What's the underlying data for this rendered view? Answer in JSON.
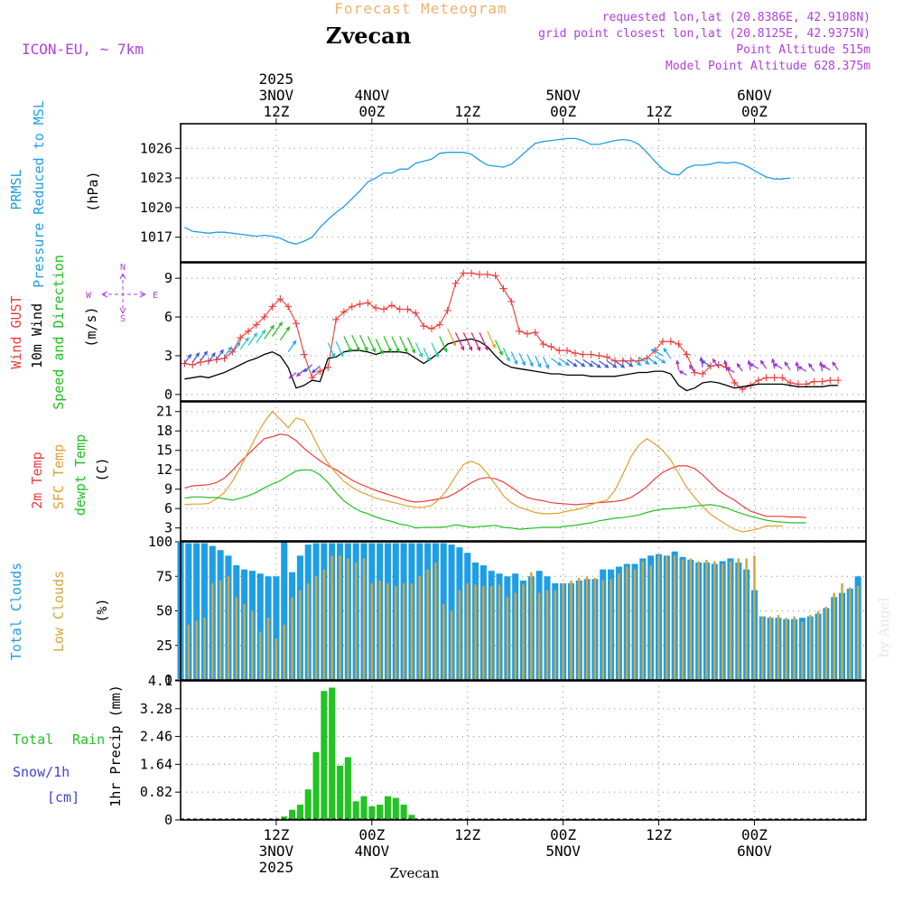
{
  "header": {
    "title": "Forecast Meteogram",
    "location": "Zvecan",
    "model": "ICON-EU, ~ 7km",
    "requested": "requested lon,lat (20.8386E, 42.9108N)",
    "grid_point": "grid point closest lon,lat (20.8125E, 42.9375N)",
    "point_altitude": "Point Altitude 515m",
    "model_altitude": "Model Point Altitude 628.375m",
    "footer_location": "Zvecan",
    "watermark": "by Angel"
  },
  "colors": {
    "pressure": "#1e9ee6",
    "gust": "#f03a3a",
    "wind": "#000000",
    "wind_dir": "#1fbf1f",
    "temp_2m": "#f03a3a",
    "temp_sfc": "#e0a030",
    "dewpoint": "#20c020",
    "total_cloud": "#1e9ee6",
    "low_cloud": "#d2a640",
    "rain": "#22c322",
    "snow": "#4040e0",
    "compass": "#b040e0",
    "title_color": "#f0b070",
    "info_color": "#b040e0"
  },
  "time_axis": {
    "top_labels": [
      {
        "hour": 12,
        "lines": [
          "2025",
          "3NOV",
          "12Z"
        ]
      },
      {
        "hour": 24,
        "lines": [
          "4NOV",
          "00Z"
        ]
      },
      {
        "hour": 36,
        "lines": [
          "12Z"
        ]
      },
      {
        "hour": 48,
        "lines": [
          "5NOV",
          "00Z"
        ]
      },
      {
        "hour": 60,
        "lines": [
          "12Z"
        ]
      },
      {
        "hour": 72,
        "lines": [
          "6NOV",
          "00Z"
        ]
      }
    ],
    "bottom_labels": [
      {
        "hour": 12,
        "lines": [
          "12Z",
          "3NOV",
          "2025"
        ]
      },
      {
        "hour": 24,
        "lines": [
          "00Z",
          "4NOV"
        ]
      },
      {
        "hour": 36,
        "lines": [
          "12Z"
        ]
      },
      {
        "hour": 48,
        "lines": [
          "00Z",
          "5NOV"
        ]
      },
      {
        "hour": 60,
        "lines": [
          "12Z"
        ]
      },
      {
        "hour": 72,
        "lines": [
          "00Z",
          "6NOV"
        ]
      }
    ]
  },
  "labels": {
    "pressure": [
      "PRMSL",
      "Pressure Reduced to MSL"
    ],
    "pressure_unit": "(hPa)",
    "wind_gust": "Wind GUST",
    "wind_10m": "10m Wind",
    "wind_dir": "Speed and Direction",
    "wind_unit": "(m/s)",
    "compass_n": "N",
    "compass_s": "S",
    "compass_w": "W",
    "compass_e": "E",
    "temp_2m": "2m Temp",
    "temp_sfc": "SFC Temp",
    "temp_dew": "dewpt Temp",
    "temp_unit": "(C)",
    "total_clouds": "Total Clouds",
    "low_clouds": "Low Clouds",
    "cloud_unit": "(%)",
    "rain_total": "Total",
    "rain_rain": "Rain",
    "snow": "Snow/1h",
    "snow_unit": "[cm]",
    "precip_axis": "1hr Precip (mm)"
  },
  "chart_data": [
    {
      "type": "line",
      "name": "pressure",
      "x_start_hour": 0.5,
      "x_step_hours": 1,
      "ylim": [
        1014.5,
        1028.5
      ],
      "yticks": [
        1017,
        1020,
        1023,
        1026
      ],
      "series": [
        {
          "name": "PRMSL",
          "values": [
            1018.0,
            1017.6,
            1017.5,
            1017.4,
            1017.5,
            1017.5,
            1017.4,
            1017.3,
            1017.2,
            1017.1,
            1017.2,
            1017.1,
            1016.9,
            1016.5,
            1016.3,
            1016.6,
            1017.0,
            1018.0,
            1018.8,
            1019.5,
            1020.1,
            1020.9,
            1021.7,
            1022.6,
            1023.0,
            1023.5,
            1023.5,
            1023.9,
            1023.9,
            1024.5,
            1024.7,
            1024.9,
            1025.5,
            1025.6,
            1025.6,
            1025.6,
            1025.4,
            1024.8,
            1024.3,
            1024.2,
            1024.1,
            1024.4,
            1025.1,
            1025.8,
            1026.5,
            1026.7,
            1026.8,
            1026.9,
            1027.0,
            1027.0,
            1026.8,
            1026.4,
            1026.4,
            1026.6,
            1026.8,
            1026.9,
            1026.8,
            1026.4,
            1025.6,
            1024.7,
            1023.9,
            1023.4,
            1023.3,
            1024.0,
            1024.3,
            1024.3,
            1024.4,
            1024.6,
            1024.5,
            1024.6,
            1024.4,
            1024.0,
            1023.5,
            1023.1,
            1022.9,
            1022.9,
            1023.0
          ]
        }
      ]
    },
    {
      "type": "line",
      "name": "wind",
      "x_start_hour": 0.5,
      "x_step_hours": 1,
      "ylim": [
        -0.5,
        10.2
      ],
      "yticks": [
        0,
        3,
        6,
        9
      ],
      "series": [
        {
          "name": "Wind GUST",
          "values": [
            2.4,
            2.3,
            2.5,
            2.6,
            2.7,
            2.8,
            3.3,
            4.4,
            4.9,
            5.4,
            6.0,
            6.8,
            7.4,
            6.8,
            5.5,
            3.1,
            1.3,
            1.8,
            2.1,
            5.8,
            6.4,
            6.8,
            7.0,
            7.1,
            6.7,
            6.6,
            6.9,
            6.6,
            6.6,
            6.3,
            5.3,
            5.1,
            5.4,
            6.5,
            8.6,
            9.4,
            9.4,
            9.3,
            9.3,
            9.2,
            8.2,
            7.2,
            4.9,
            4.7,
            4.8,
            3.9,
            3.7,
            3.4,
            3.4,
            3.2,
            3.1,
            3.1,
            3.0,
            2.9,
            2.6,
            2.6,
            2.6,
            2.6,
            2.8,
            3.4,
            4.1,
            4.1,
            3.9,
            3.1,
            1.7,
            1.6,
            2.2,
            2.3,
            2.1,
            0.9,
            0.4,
            0.7,
            1.1,
            1.3,
            1.3,
            1.3,
            0.9,
            0.8,
            0.8,
            1.0,
            1.0,
            1.1,
            1.1
          ]
        },
        {
          "name": "10m Wind",
          "values": [
            1.2,
            1.3,
            1.4,
            1.3,
            1.5,
            1.7,
            2.0,
            2.3,
            2.6,
            2.8,
            3.1,
            3.3,
            3.0,
            2.1,
            0.5,
            0.7,
            1.1,
            1.0,
            2.8,
            2.9,
            3.3,
            3.4,
            3.4,
            3.3,
            3.1,
            3.3,
            3.3,
            3.3,
            3.2,
            2.8,
            2.4,
            2.8,
            3.3,
            3.9,
            4.1,
            4.2,
            4.3,
            4.1,
            3.7,
            3.0,
            2.4,
            2.1,
            2.0,
            1.9,
            1.8,
            1.7,
            1.6,
            1.6,
            1.5,
            1.5,
            1.5,
            1.4,
            1.4,
            1.4,
            1.4,
            1.5,
            1.6,
            1.7,
            1.7,
            1.8,
            1.8,
            1.6,
            0.7,
            0.3,
            0.5,
            0.9,
            1.0,
            0.9,
            0.7,
            0.5,
            0.6,
            0.7,
            0.8,
            0.8,
            0.8,
            0.8,
            0.7,
            0.6,
            0.6,
            0.6,
            0.6,
            0.7,
            0.7
          ]
        }
      ]
    },
    {
      "type": "line",
      "name": "temperature",
      "x_start_hour": 0.5,
      "x_step_hours": 1,
      "ylim": [
        1.0,
        22.5
      ],
      "yticks": [
        3,
        6,
        9,
        12,
        15,
        18,
        21
      ],
      "series": [
        {
          "name": "2m Temp",
          "values": [
            9.2,
            9.5,
            9.6,
            9.7,
            10.0,
            10.7,
            11.9,
            13.2,
            14.4,
            15.6,
            16.8,
            17.1,
            17.5,
            17.3,
            16.5,
            15.3,
            14.3,
            13.4,
            12.6,
            12.0,
            11.2,
            10.4,
            9.8,
            9.3,
            8.8,
            8.4,
            8.0,
            7.6,
            7.2,
            7.0,
            7.1,
            7.3,
            7.5,
            7.8,
            8.4,
            9.2,
            10.0,
            10.6,
            10.8,
            10.6,
            10.1,
            9.3,
            8.4,
            7.7,
            7.4,
            7.2,
            6.9,
            6.8,
            6.7,
            6.6,
            6.7,
            6.8,
            6.9,
            7.0,
            7.1,
            7.3,
            7.7,
            8.5,
            9.4,
            10.6,
            11.6,
            12.2,
            12.6,
            12.6,
            12.2,
            11.2,
            10.0,
            8.8,
            8.0,
            7.3,
            6.4,
            5.6,
            5.2,
            4.8,
            4.8,
            4.8,
            4.7,
            4.7,
            4.6
          ]
        },
        {
          "name": "SFC Temp",
          "values": [
            6.6,
            6.7,
            6.7,
            6.8,
            7.5,
            8.5,
            10.2,
            12.4,
            14.8,
            17.2,
            19.4,
            21.0,
            19.8,
            18.5,
            20.0,
            19.6,
            17.5,
            15.0,
            13.0,
            11.5,
            10.2,
            9.3,
            8.6,
            8.1,
            7.6,
            7.3,
            7.0,
            6.7,
            6.4,
            6.2,
            6.2,
            6.5,
            7.5,
            9.0,
            11.0,
            12.8,
            13.3,
            12.8,
            11.4,
            9.7,
            8.0,
            6.9,
            6.2,
            5.8,
            5.4,
            5.2,
            5.2,
            5.3,
            5.6,
            5.8,
            6.1,
            6.6,
            7.0,
            7.3,
            8.8,
            11.3,
            14.0,
            15.8,
            16.8,
            16.0,
            15.0,
            13.5,
            11.4,
            9.3,
            7.7,
            6.3,
            5.1,
            4.3,
            3.5,
            2.8,
            2.4,
            2.6,
            2.9,
            3.3,
            3.3,
            3.3
          ]
        },
        {
          "name": "dewpt Temp",
          "values": [
            7.6,
            7.8,
            7.8,
            7.7,
            7.7,
            7.5,
            7.3,
            7.6,
            8.0,
            8.5,
            9.2,
            9.8,
            10.3,
            11.1,
            11.8,
            12.0,
            11.9,
            11.2,
            10.0,
            8.5,
            7.2,
            6.3,
            5.6,
            5.2,
            4.7,
            4.3,
            4.0,
            3.6,
            3.4,
            3.0,
            3.1,
            3.1,
            3.1,
            3.2,
            3.5,
            3.3,
            3.1,
            3.2,
            3.3,
            3.4,
            3.1,
            3.0,
            2.8,
            2.9,
            3.0,
            3.1,
            3.1,
            3.1,
            3.3,
            3.4,
            3.6,
            3.8,
            4.1,
            4.3,
            4.5,
            4.6,
            4.8,
            5.0,
            5.4,
            5.7,
            5.9,
            6.0,
            6.1,
            6.2,
            6.4,
            6.5,
            6.6,
            6.4,
            6.1,
            5.6,
            5.2,
            4.8,
            4.5,
            4.2,
            4.0,
            3.9,
            3.8,
            3.8,
            3.8
          ]
        }
      ]
    },
    {
      "type": "bar",
      "name": "clouds",
      "x_start_hour": 0,
      "x_step_hours": 1,
      "ylim": [
        0,
        100
      ],
      "yticks": [
        0,
        25,
        50,
        75,
        100
      ],
      "series": [
        {
          "name": "Total Clouds",
          "values": [
            100,
            99,
            99,
            99,
            97,
            94,
            90,
            83,
            80,
            79,
            77,
            75,
            75,
            100,
            78,
            90,
            98,
            99,
            99,
            99,
            99,
            99,
            99,
            99,
            99,
            99,
            99,
            99,
            99,
            99,
            99,
            99,
            99,
            99,
            98,
            96,
            92,
            85,
            83,
            79,
            77,
            75,
            77,
            72,
            75,
            79,
            75,
            70,
            70,
            70,
            72,
            73,
            73,
            80,
            80,
            82,
            84,
            84,
            88,
            90,
            91,
            90,
            93,
            89,
            87,
            85,
            85,
            84,
            86,
            88,
            85,
            80,
            65,
            46,
            45,
            45,
            44,
            44,
            45,
            46,
            48,
            52,
            60,
            63,
            66,
            75
          ]
        },
        {
          "name": "Low Clouds",
          "values": [
            25,
            40,
            43,
            45,
            70,
            72,
            75,
            60,
            55,
            50,
            35,
            45,
            30,
            40,
            60,
            65,
            70,
            75,
            80,
            90,
            90,
            88,
            85,
            88,
            70,
            72,
            70,
            68,
            70,
            70,
            75,
            80,
            85,
            55,
            50,
            65,
            70,
            69,
            68,
            68,
            69,
            60,
            63,
            69,
            78,
            63,
            65,
            65,
            70,
            72,
            74,
            75,
            74,
            72,
            73,
            77,
            82,
            80,
            86,
            83,
            90,
            90,
            90,
            87,
            88,
            86,
            87,
            86,
            84,
            86,
            88,
            88,
            90,
            46,
            46,
            47,
            45,
            46,
            42,
            47,
            50,
            53,
            63,
            70,
            67,
            68
          ]
        }
      ]
    },
    {
      "type": "bar",
      "name": "precipitation",
      "x_start_hour": 0,
      "x_step_hours": 1,
      "ylim": [
        0,
        4.1
      ],
      "yticks": [
        0,
        0.82,
        1.64,
        2.46,
        3.28,
        4.1
      ],
      "ytick_labels": [
        "0",
        "0.82",
        "1.64",
        "2.46",
        "3.28",
        "4.1"
      ],
      "series": [
        {
          "name": "Total Rain",
          "values": [
            0,
            0,
            0,
            0,
            0,
            0,
            0,
            0,
            0,
            0,
            0,
            0,
            0,
            0.1,
            0.3,
            0.45,
            0.9,
            2.0,
            3.8,
            3.9,
            1.6,
            1.85,
            0.55,
            0.7,
            0.4,
            0.45,
            0.7,
            0.65,
            0.45,
            0.15,
            0,
            0,
            0,
            0,
            0,
            0,
            0,
            0,
            0,
            0,
            0,
            0,
            0,
            0,
            0,
            0,
            0,
            0,
            0,
            0,
            0,
            0,
            0,
            0,
            0,
            0,
            0,
            0,
            0,
            0,
            0,
            0,
            0,
            0,
            0,
            0,
            0,
            0,
            0,
            0,
            0,
            0,
            0,
            0,
            0,
            0,
            0,
            0,
            0,
            0,
            0,
            0,
            0,
            0,
            0,
            0
          ]
        },
        {
          "name": "Snow/1h",
          "values": [
            0,
            0,
            0,
            0,
            0,
            0,
            0,
            0,
            0,
            0,
            0,
            0,
            0,
            0,
            0,
            0,
            0,
            0,
            0,
            0,
            0,
            0,
            0,
            0,
            0,
            0,
            0,
            0,
            0,
            0,
            0,
            0,
            0,
            0,
            0,
            0,
            0,
            0,
            0,
            0,
            0,
            0,
            0,
            0,
            0,
            0,
            0,
            0,
            0,
            0,
            0,
            0,
            0,
            0,
            0,
            0,
            0,
            0,
            0,
            0,
            0,
            0,
            0,
            0,
            0,
            0,
            0,
            0,
            0,
            0,
            0,
            0,
            0,
            0,
            0,
            0,
            0,
            0,
            0,
            0,
            0,
            0,
            0,
            0,
            0,
            0
          ]
        }
      ]
    }
  ]
}
